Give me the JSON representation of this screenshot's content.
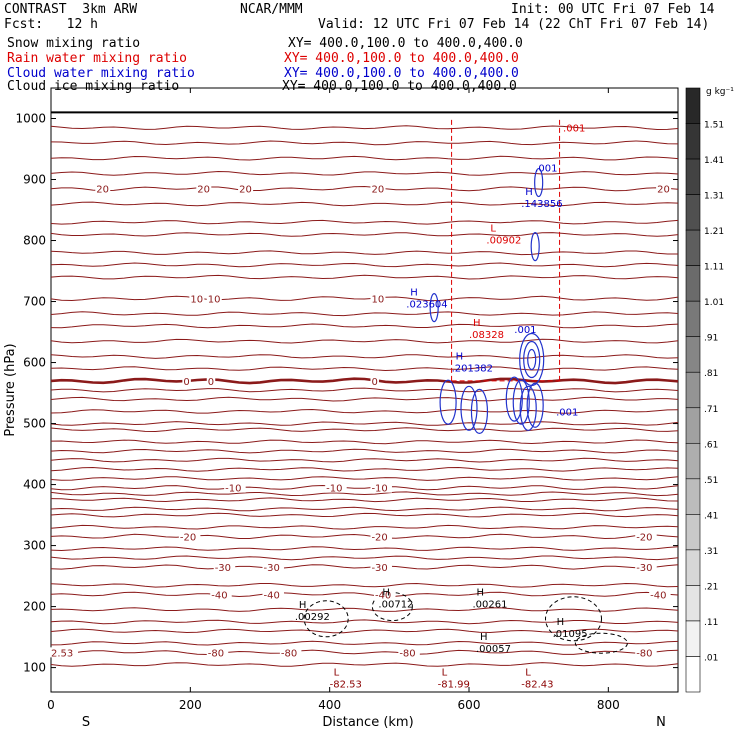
{
  "header": {
    "model": "CONTRAST  3km ARW",
    "center": "NCAR/MMM",
    "init": "Init: 00 UTC Fri 07 Feb 14",
    "fcst": "Fcst:   12 h",
    "valid": "Valid: 12 UTC Fri 07 Feb 14 (22 ChT Fri 07 Feb 14)"
  },
  "fields": [
    {
      "name": "Snow mixing ratio",
      "xy": "XY= 400.0,100.0 to 400.0,400.0",
      "color": "#000000"
    },
    {
      "name": "Rain water mixing ratio",
      "xy": "XY= 400.0,100.0 to 400.0,400.0",
      "color": "#dd0000"
    },
    {
      "name": "Cloud water mixing ratio",
      "xy": "XY= 400.0,100.0 to 400.0,400.0",
      "color": "#0000cc"
    },
    {
      "name": "Cloud ice mixing ratio",
      "xy": "XY= 400.0,100.0 to 400.0,400.0",
      "color": "#000000"
    }
  ],
  "colorbar": {
    "unit": "g kg⁻¹",
    "labels": [
      ".01",
      ".11",
      ".21",
      ".31",
      ".41",
      ".51",
      ".61",
      ".71",
      ".81",
      ".91",
      "1.01",
      "1.11",
      "1.21",
      "1.31",
      "1.41",
      "1.51"
    ]
  },
  "chart_data": {
    "type": "cross-section",
    "xlabel": "Distance (km)",
    "ylabel": "Pressure (hPa)",
    "xlim": [
      0,
      900
    ],
    "ylim": [
      1050,
      60
    ],
    "x_ticks": [
      0,
      200,
      400,
      600,
      800
    ],
    "y_ticks": [
      100,
      200,
      300,
      400,
      500,
      600,
      700,
      800,
      900,
      1000
    ],
    "x_end_labels": {
      "left": "S",
      "right": "N"
    },
    "temperature_isotherms": [
      {
        "value": -80,
        "p": 125,
        "labels": [
          {
            "x": 0,
            "text": "2.53"
          },
          {
            "x": 225,
            "text": "-80"
          },
          {
            "x": 330,
            "text": "-80"
          },
          {
            "x": 500,
            "text": "-80"
          },
          {
            "x": 840,
            "text": "-80"
          }
        ]
      },
      {
        "value": -40,
        "p": 220,
        "labels": [
          {
            "x": 230,
            "text": "-40"
          },
          {
            "x": 305,
            "text": "-40"
          },
          {
            "x": 465,
            "text": "-40"
          },
          {
            "x": 860,
            "text": "-40"
          }
        ]
      },
      {
        "value": -30,
        "p": 265,
        "labels": [
          {
            "x": 235,
            "text": "-30"
          },
          {
            "x": 305,
            "text": "-30"
          },
          {
            "x": 460,
            "text": "-30"
          },
          {
            "x": 840,
            "text": "-30"
          }
        ]
      },
      {
        "value": -20,
        "p": 315,
        "labels": [
          {
            "x": 185,
            "text": "-20"
          },
          {
            "x": 460,
            "text": "-20"
          },
          {
            "x": 840,
            "text": "-20"
          }
        ]
      },
      {
        "value": -10,
        "p": 395,
        "labels": [
          {
            "x": 250,
            "text": "-10"
          },
          {
            "x": 395,
            "text": "-10"
          },
          {
            "x": 460,
            "text": "-10"
          }
        ]
      },
      {
        "value": 0,
        "p": 570,
        "labels": [
          {
            "x": 190,
            "text": "0"
          },
          {
            "x": 225,
            "text": "0"
          },
          {
            "x": 460,
            "text": "0"
          }
        ]
      },
      {
        "value": 10,
        "p": 705,
        "labels": [
          {
            "x": 200,
            "text": "10"
          },
          {
            "x": 225,
            "text": "10"
          },
          {
            "x": 460,
            "text": "10"
          }
        ]
      },
      {
        "value": 20,
        "p": 885,
        "labels": [
          {
            "x": 65,
            "text": "20"
          },
          {
            "x": 210,
            "text": "20"
          },
          {
            "x": 270,
            "text": "20"
          },
          {
            "x": 460,
            "text": "20"
          },
          {
            "x": 870,
            "text": "20"
          }
        ]
      }
    ],
    "extrema_labels": [
      {
        "kind": "L",
        "x": 400,
        "p": 82,
        "value": "-82.53",
        "color": "#8b0000"
      },
      {
        "kind": "L",
        "x": 555,
        "p": 82,
        "value": "-81.99",
        "color": "#8b0000"
      },
      {
        "kind": "L",
        "x": 675,
        "p": 82,
        "value": "-82.43",
        "color": "#8b0000"
      },
      {
        "kind": "H",
        "x": 610,
        "p": 140,
        "value": ".00057",
        "color": "#000000"
      },
      {
        "kind": "H",
        "x": 720,
        "p": 165,
        "value": ".01095",
        "color": "#000000"
      },
      {
        "kind": "H",
        "x": 350,
        "p": 193,
        "value": ".00292",
        "color": "#000000"
      },
      {
        "kind": "H",
        "x": 470,
        "p": 213,
        "value": ".00712",
        "color": "#000000"
      },
      {
        "kind": "H",
        "x": 605,
        "p": 213,
        "value": ".00261",
        "color": "#000000"
      },
      {
        "kind": "H",
        "x": 575,
        "p": 600,
        "value": ".201382",
        "color": "#0000cc"
      },
      {
        "kind": "H",
        "x": 600,
        "p": 655,
        "value": ".08328",
        "color": "#dd0000"
      },
      {
        "kind": "H",
        "x": 510,
        "p": 705,
        "value": ".023604",
        "color": "#0000cc"
      },
      {
        "kind": "L",
        "x": 625,
        "p": 810,
        "value": ".00902",
        "color": "#dd0000"
      },
      {
        "kind": "H",
        "x": 675,
        "p": 870,
        "value": ".143856",
        "color": "#0000cc"
      }
    ],
    "cloud_water_labels": [
      {
        "x": 725,
        "p": 520,
        "text": ".001"
      },
      {
        "x": 665,
        "p": 655,
        "text": ".001"
      },
      {
        "x": 695,
        "p": 920,
        "text": ".001"
      }
    ],
    "rain_labels": [
      {
        "x": 735,
        "p": 985,
        "text": ".001"
      }
    ],
    "section_bounds_km": [
      575,
      730
    ]
  }
}
